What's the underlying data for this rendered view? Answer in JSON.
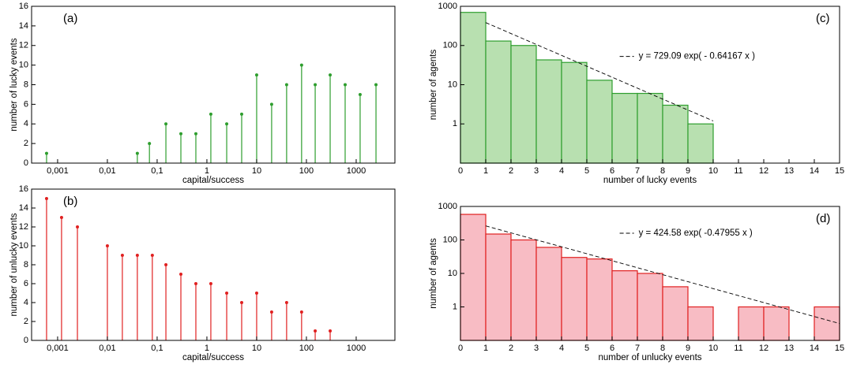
{
  "chart_data": [
    {
      "type": "stem",
      "panel_label": "(a)",
      "xlabel": "capital/success",
      "ylabel": "number of lucky events",
      "color": "#2e9e2e",
      "xscale": "log",
      "x": [
        0.0006,
        0.04,
        0.07,
        0.15,
        0.3,
        0.6,
        1.2,
        2.5,
        5,
        10,
        20,
        40,
        80,
        150,
        300,
        600,
        1200,
        2500
      ],
      "values": [
        1,
        1,
        2,
        4,
        3,
        3,
        5,
        4,
        5,
        9,
        6,
        8,
        10,
        8,
        9,
        8,
        7,
        8
      ],
      "xlim": [
        0.0003,
        6000
      ],
      "ylim": [
        0,
        16
      ],
      "xticks": [
        {
          "value": 0.001,
          "label": "0,001"
        },
        {
          "value": 0.01,
          "label": "0,01"
        },
        {
          "value": 0.1,
          "label": "0,1"
        },
        1,
        10,
        100,
        1000
      ],
      "yticks": [
        0,
        2,
        4,
        6,
        8,
        10,
        12,
        14,
        16
      ]
    },
    {
      "type": "stem",
      "panel_label": "(b)",
      "xlabel": "capital/success",
      "ylabel": "number of unlucky events",
      "color": "#e02020",
      "xscale": "log",
      "x": [
        0.0006,
        0.0012,
        0.0025,
        0.01,
        0.02,
        0.04,
        0.08,
        0.15,
        0.3,
        0.6,
        1.2,
        2.5,
        5,
        10,
        20,
        40,
        80,
        150,
        300
      ],
      "values": [
        15,
        13,
        12,
        10,
        9,
        9,
        9,
        8,
        7,
        6,
        6,
        5,
        4,
        5,
        3,
        4,
        3,
        1,
        1
      ],
      "xlim": [
        0.0003,
        6000
      ],
      "ylim": [
        0,
        16
      ],
      "xticks": [
        {
          "value": 0.001,
          "label": "0,001"
        },
        {
          "value": 0.01,
          "label": "0,01"
        },
        {
          "value": 0.1,
          "label": "0,1"
        },
        1,
        10,
        100,
        1000
      ],
      "yticks": [
        0,
        2,
        4,
        6,
        8,
        10,
        12,
        14,
        16
      ]
    },
    {
      "type": "histogram",
      "panel_label": "(c)",
      "xlabel": "number of lucky events",
      "ylabel": "number of agents",
      "color": "#2e9e2e",
      "fill": "#b8e0b0",
      "yscale": "log",
      "bins": [
        0,
        1,
        2,
        3,
        4,
        5,
        6,
        7,
        8,
        9,
        10
      ],
      "counts": [
        700,
        130,
        100,
        43,
        37,
        13,
        6,
        6,
        3,
        1
      ],
      "fit": [
        729.09,
        -0.64167
      ],
      "annotation": "y = 729.09 exp( - 0.64167 x )",
      "xlim": [
        0,
        15
      ],
      "ylim": [
        0.1,
        1000
      ],
      "xticks": [
        0,
        1,
        2,
        3,
        4,
        5,
        6,
        7,
        8,
        9,
        10,
        11,
        12,
        13,
        14,
        15
      ],
      "yticks": [
        1,
        10,
        100,
        1000
      ]
    },
    {
      "type": "histogram",
      "panel_label": "(d)",
      "xlabel": "number of unlucky events",
      "ylabel": "number of agents",
      "color": "#e02020",
      "fill": "#f8bcc4",
      "yscale": "log",
      "bins": [
        0,
        1,
        2,
        3,
        4,
        5,
        6,
        7,
        8,
        9,
        10,
        11,
        12,
        13,
        14,
        15
      ],
      "counts": [
        580,
        150,
        100,
        60,
        30,
        27,
        12,
        10,
        4,
        1,
        0,
        1,
        1,
        0,
        1
      ],
      "fit": [
        424.58,
        -0.47955
      ],
      "annotation": "y = 424.58 exp( -0.47955 x )",
      "xlim": [
        0,
        15
      ],
      "ylim": [
        0.1,
        1000
      ],
      "xticks": [
        0,
        1,
        2,
        3,
        4,
        5,
        6,
        7,
        8,
        9,
        10,
        11,
        12,
        13,
        14,
        15
      ],
      "yticks": [
        1,
        10,
        100,
        1000
      ]
    }
  ]
}
